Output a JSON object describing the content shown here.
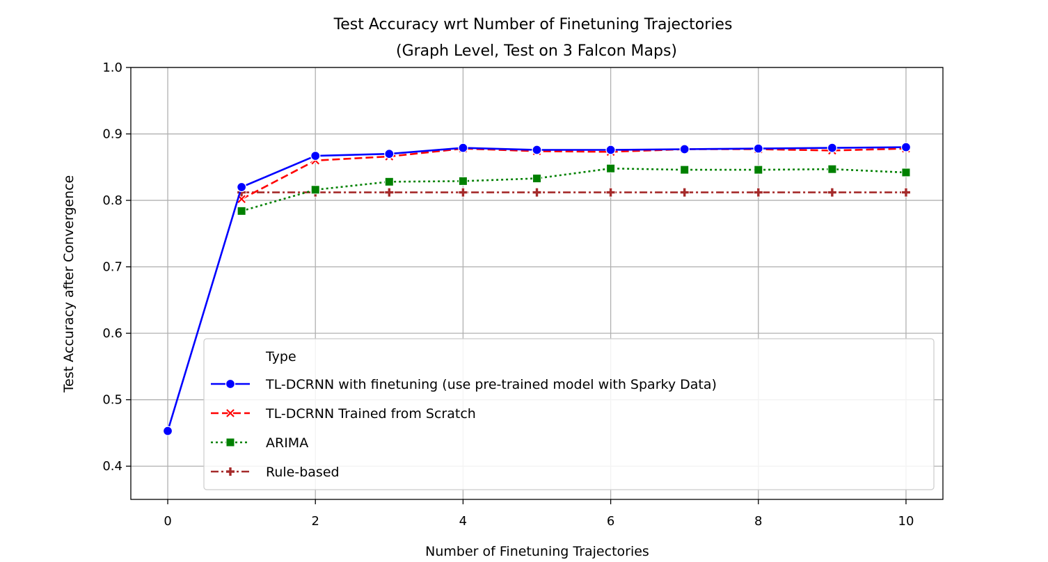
{
  "chart_data": {
    "type": "line",
    "title": "Test Accuracy wrt Number of Finetuning Trajectories",
    "subtitle": "(Graph Level, Test on 3 Falcon Maps)",
    "xlabel": "Number of Finetuning Trajectories",
    "ylabel": "Test Accuracy after Convergence",
    "xlim": [
      -0.5,
      10.5
    ],
    "ylim": [
      0.35,
      1.0
    ],
    "xticks": [
      0,
      2,
      4,
      6,
      8,
      10
    ],
    "yticks": [
      0.4,
      0.5,
      0.6,
      0.7,
      0.8,
      0.9,
      1.0
    ],
    "xtick_labels": [
      "0",
      "2",
      "4",
      "6",
      "8",
      "10"
    ],
    "ytick_labels": [
      "0.4",
      "0.5",
      "0.6",
      "0.7",
      "0.8",
      "0.9",
      "1.0"
    ],
    "grid": true,
    "legend": {
      "title": "Type",
      "placement": "lower-right"
    },
    "series": [
      {
        "name": "TL-DCRNN with finetuning (use pre-trained model with Sparky Data)",
        "color": "#0000ff",
        "line_style": "solid",
        "marker": "circle",
        "x": [
          0,
          1,
          2,
          3,
          4,
          5,
          6,
          7,
          8,
          9,
          10
        ],
        "y": [
          0.453,
          0.82,
          0.867,
          0.87,
          0.879,
          0.876,
          0.876,
          0.877,
          0.878,
          0.879,
          0.88
        ]
      },
      {
        "name": "TL-DCRNN Trained from Scratch",
        "color": "#ff0000",
        "line_style": "dashed",
        "marker": "x",
        "x": [
          1,
          2,
          3,
          4,
          5,
          6,
          7,
          8,
          9,
          10
        ],
        "y": [
          0.802,
          0.86,
          0.866,
          0.878,
          0.874,
          0.873,
          0.877,
          0.877,
          0.875,
          0.878
        ]
      },
      {
        "name": "ARIMA",
        "color": "#008000",
        "line_style": "dotted",
        "marker": "square",
        "x": [
          1,
          2,
          3,
          4,
          5,
          6,
          7,
          8,
          9,
          10
        ],
        "y": [
          0.784,
          0.816,
          0.828,
          0.829,
          0.833,
          0.848,
          0.846,
          0.846,
          0.847,
          0.842
        ]
      },
      {
        "name": "Rule-based",
        "color": "#a52a2a",
        "line_style": "dashdot",
        "marker": "plus",
        "x": [
          1,
          2,
          3,
          4,
          5,
          6,
          7,
          8,
          9,
          10
        ],
        "y": [
          0.812,
          0.812,
          0.812,
          0.812,
          0.812,
          0.812,
          0.812,
          0.812,
          0.812,
          0.812
        ]
      }
    ]
  }
}
